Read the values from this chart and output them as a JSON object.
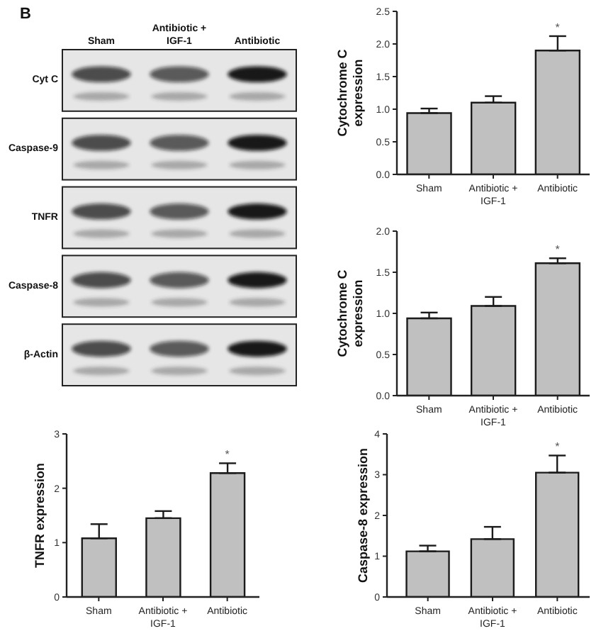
{
  "chart_data": [
    {
      "type": "other",
      "title": "B",
      "categories": [
        "Sham",
        "Antibiotic + IGF-1",
        "Antibiotic"
      ],
      "y_categories": [
        "Cyt C",
        "Caspase-9",
        "TNFR",
        "Caspase-8",
        "β-Actin"
      ]
    },
    {
      "type": "bar",
      "ylabel": "Cytochrome C expression",
      "categories": [
        "Sham",
        "Antibiotic + IGF-1",
        "Antibiotic"
      ],
      "values": [
        0.94,
        1.1,
        1.9
      ],
      "errors": [
        [
          0.94,
          1.01
        ],
        [
          1.1,
          1.2
        ],
        [
          1.9,
          2.12
        ]
      ],
      "color": "#c0c0c0",
      "ylim": [
        0,
        2.5
      ],
      "yticks": [
        {
          "value": 0,
          "label": "0.0"
        },
        0.5,
        {
          "value": 1,
          "label": "1.0"
        },
        1.5,
        {
          "value": 2,
          "label": "2.0"
        },
        2.5
      ],
      "annotations": [
        {
          "text": "*",
          "x": "Antibiotic",
          "y": 2.12
        }
      ]
    },
    {
      "type": "bar",
      "ylabel": "Cytochrome C expression",
      "categories": [
        "Sham",
        "Antibiotic + IGF-1",
        "Antibiotic"
      ],
      "values": [
        0.94,
        1.09,
        1.61
      ],
      "errors": [
        [
          0.94,
          1.01
        ],
        [
          1.09,
          1.2
        ],
        [
          1.61,
          1.67
        ]
      ],
      "color": "#c0c0c0",
      "ylim": [
        0,
        2
      ],
      "yticks": [
        {
          "value": 0,
          "label": "0.0"
        },
        0.5,
        {
          "value": 1,
          "label": "1.0"
        },
        1.5,
        {
          "value": 2,
          "label": "2.0"
        }
      ],
      "annotations": [
        {
          "text": "*",
          "x": "Antibiotic",
          "y": 1.67
        }
      ]
    },
    {
      "type": "bar",
      "ylabel": "TNFR expression",
      "categories": [
        "Sham",
        "Antibiotic + IGF-1",
        "Antibiotic"
      ],
      "values": [
        1.08,
        1.45,
        2.28
      ],
      "errors": [
        [
          1.08,
          1.34
        ],
        [
          1.45,
          1.58
        ],
        [
          2.28,
          2.46
        ]
      ],
      "color": "#c0c0c0",
      "ylim": [
        0,
        3
      ],
      "yticks": [
        0,
        1,
        2,
        3
      ],
      "annotations": [
        {
          "text": "*",
          "x": "Antibiotic",
          "y": 2.46
        }
      ]
    },
    {
      "type": "bar",
      "ylabel": "Caspase-8 expression",
      "categories": [
        "Sham",
        "Antibiotic + IGF-1",
        "Antibiotic"
      ],
      "values": [
        1.12,
        1.42,
        3.05
      ],
      "errors": [
        [
          1.12,
          1.26
        ],
        [
          1.42,
          1.72
        ],
        [
          3.05,
          3.47
        ]
      ],
      "color": "#c0c0c0",
      "ylim": [
        0,
        4
      ],
      "yticks": [
        0,
        1,
        2,
        3,
        4
      ],
      "annotations": [
        {
          "text": "*",
          "x": "Antibiotic",
          "y": 3.47
        }
      ]
    }
  ]
}
